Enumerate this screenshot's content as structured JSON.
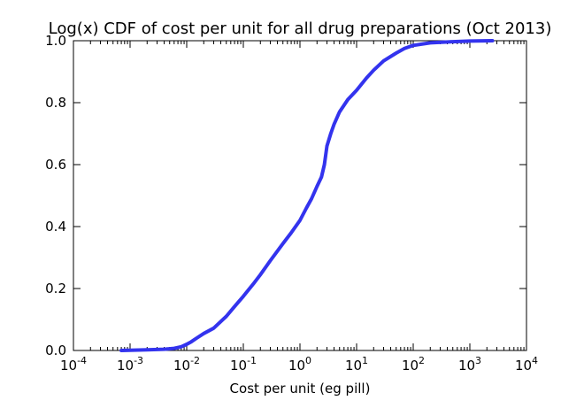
{
  "chart_data": {
    "type": "line",
    "title": "Log(x) CDF of cost per unit for all drug preparations (Oct 2013)",
    "xlabel": "Cost per unit (eg pill)",
    "ylabel": "",
    "xscale": "log",
    "xlim": [
      0.0001,
      10000
    ],
    "ylim": [
      0.0,
      1.0
    ],
    "x_ticks": [
      {
        "base": "10",
        "exp": "-4",
        "value": 0.0001
      },
      {
        "base": "10",
        "exp": "-3",
        "value": 0.001
      },
      {
        "base": "10",
        "exp": "-2",
        "value": 0.01
      },
      {
        "base": "10",
        "exp": "-1",
        "value": 0.1
      },
      {
        "base": "10",
        "exp": "0",
        "value": 1
      },
      {
        "base": "10",
        "exp": "1",
        "value": 10
      },
      {
        "base": "10",
        "exp": "2",
        "value": 100
      },
      {
        "base": "10",
        "exp": "3",
        "value": 1000
      },
      {
        "base": "10",
        "exp": "4",
        "value": 10000
      }
    ],
    "y_ticks": [
      "0.0",
      "0.2",
      "0.4",
      "0.6",
      "0.8",
      "1.0"
    ],
    "grid": false,
    "line_color": "#3333ee",
    "series": [
      {
        "x": [
          0.0007,
          0.002,
          0.004,
          0.006,
          0.008,
          0.01,
          0.012,
          0.015,
          0.02,
          0.03,
          0.05,
          0.07,
          0.1,
          0.15,
          0.2,
          0.3,
          0.5,
          0.7,
          1.0,
          1.3,
          1.6,
          2.0,
          2.4,
          2.7,
          3.0,
          3.5,
          4.0,
          5.0,
          7.0,
          10,
          15,
          20,
          30,
          50,
          70,
          100,
          200,
          500,
          1000,
          2500
        ],
        "y": [
          0.0,
          0.002,
          0.004,
          0.007,
          0.012,
          0.02,
          0.028,
          0.04,
          0.055,
          0.072,
          0.11,
          0.142,
          0.175,
          0.215,
          0.245,
          0.29,
          0.345,
          0.38,
          0.42,
          0.46,
          0.49,
          0.53,
          0.56,
          0.6,
          0.66,
          0.7,
          0.73,
          0.77,
          0.81,
          0.84,
          0.88,
          0.905,
          0.935,
          0.96,
          0.975,
          0.985,
          0.993,
          0.997,
          0.999,
          1.0
        ]
      }
    ]
  }
}
